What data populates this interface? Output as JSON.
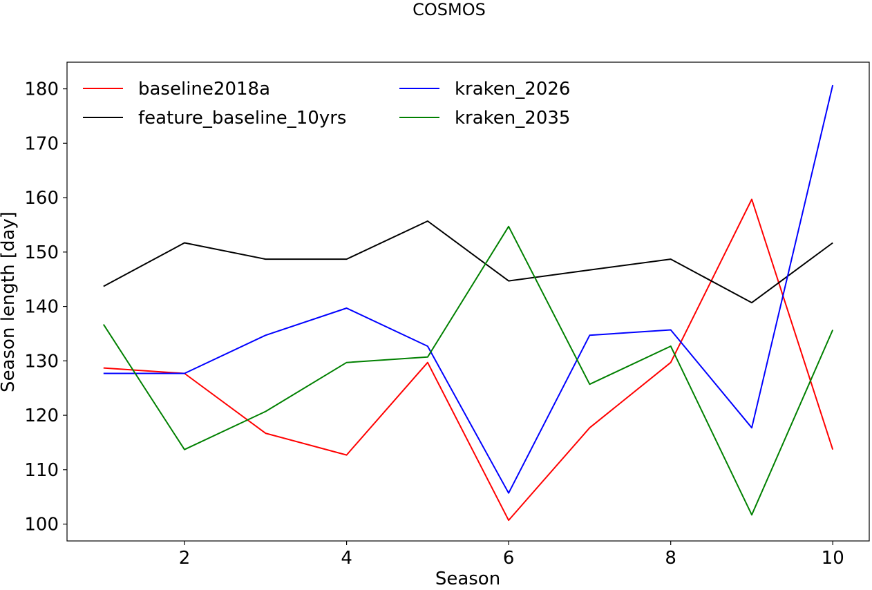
{
  "chart_data": {
    "type": "line",
    "title": "COSMOS",
    "xlabel": "Season",
    "ylabel": "Season length [day]",
    "xlim": [
      0.55,
      10.45
    ],
    "ylim": [
      96.9,
      184.9
    ],
    "xticks": [
      2,
      4,
      6,
      8,
      10
    ],
    "yticks": [
      100,
      110,
      120,
      130,
      140,
      150,
      160,
      170,
      180
    ],
    "grid": false,
    "legend_placement": "top-left",
    "x": [
      1,
      2,
      3,
      4,
      5,
      6,
      7,
      8,
      9,
      10
    ],
    "series": [
      {
        "name": "baseline2018a",
        "color": "#ff0000",
        "values": [
          128.7,
          127.7,
          116.7,
          112.7,
          129.7,
          100.7,
          117.7,
          129.7,
          159.7,
          113.7
        ]
      },
      {
        "name": "feature_baseline_10yrs",
        "color": "#000000",
        "values": [
          143.7,
          151.7,
          148.7,
          148.7,
          155.7,
          144.7,
          146.7,
          148.7,
          140.7,
          151.7
        ]
      },
      {
        "name": "kraken_2026",
        "color": "#0000ff",
        "values": [
          127.7,
          127.7,
          134.7,
          139.7,
          132.7,
          105.7,
          134.7,
          135.7,
          117.7,
          180.7
        ]
      },
      {
        "name": "kraken_2035",
        "color": "#008000",
        "values": [
          136.7,
          113.7,
          120.7,
          129.7,
          130.7,
          154.7,
          125.7,
          132.7,
          101.7,
          135.7
        ]
      }
    ]
  }
}
